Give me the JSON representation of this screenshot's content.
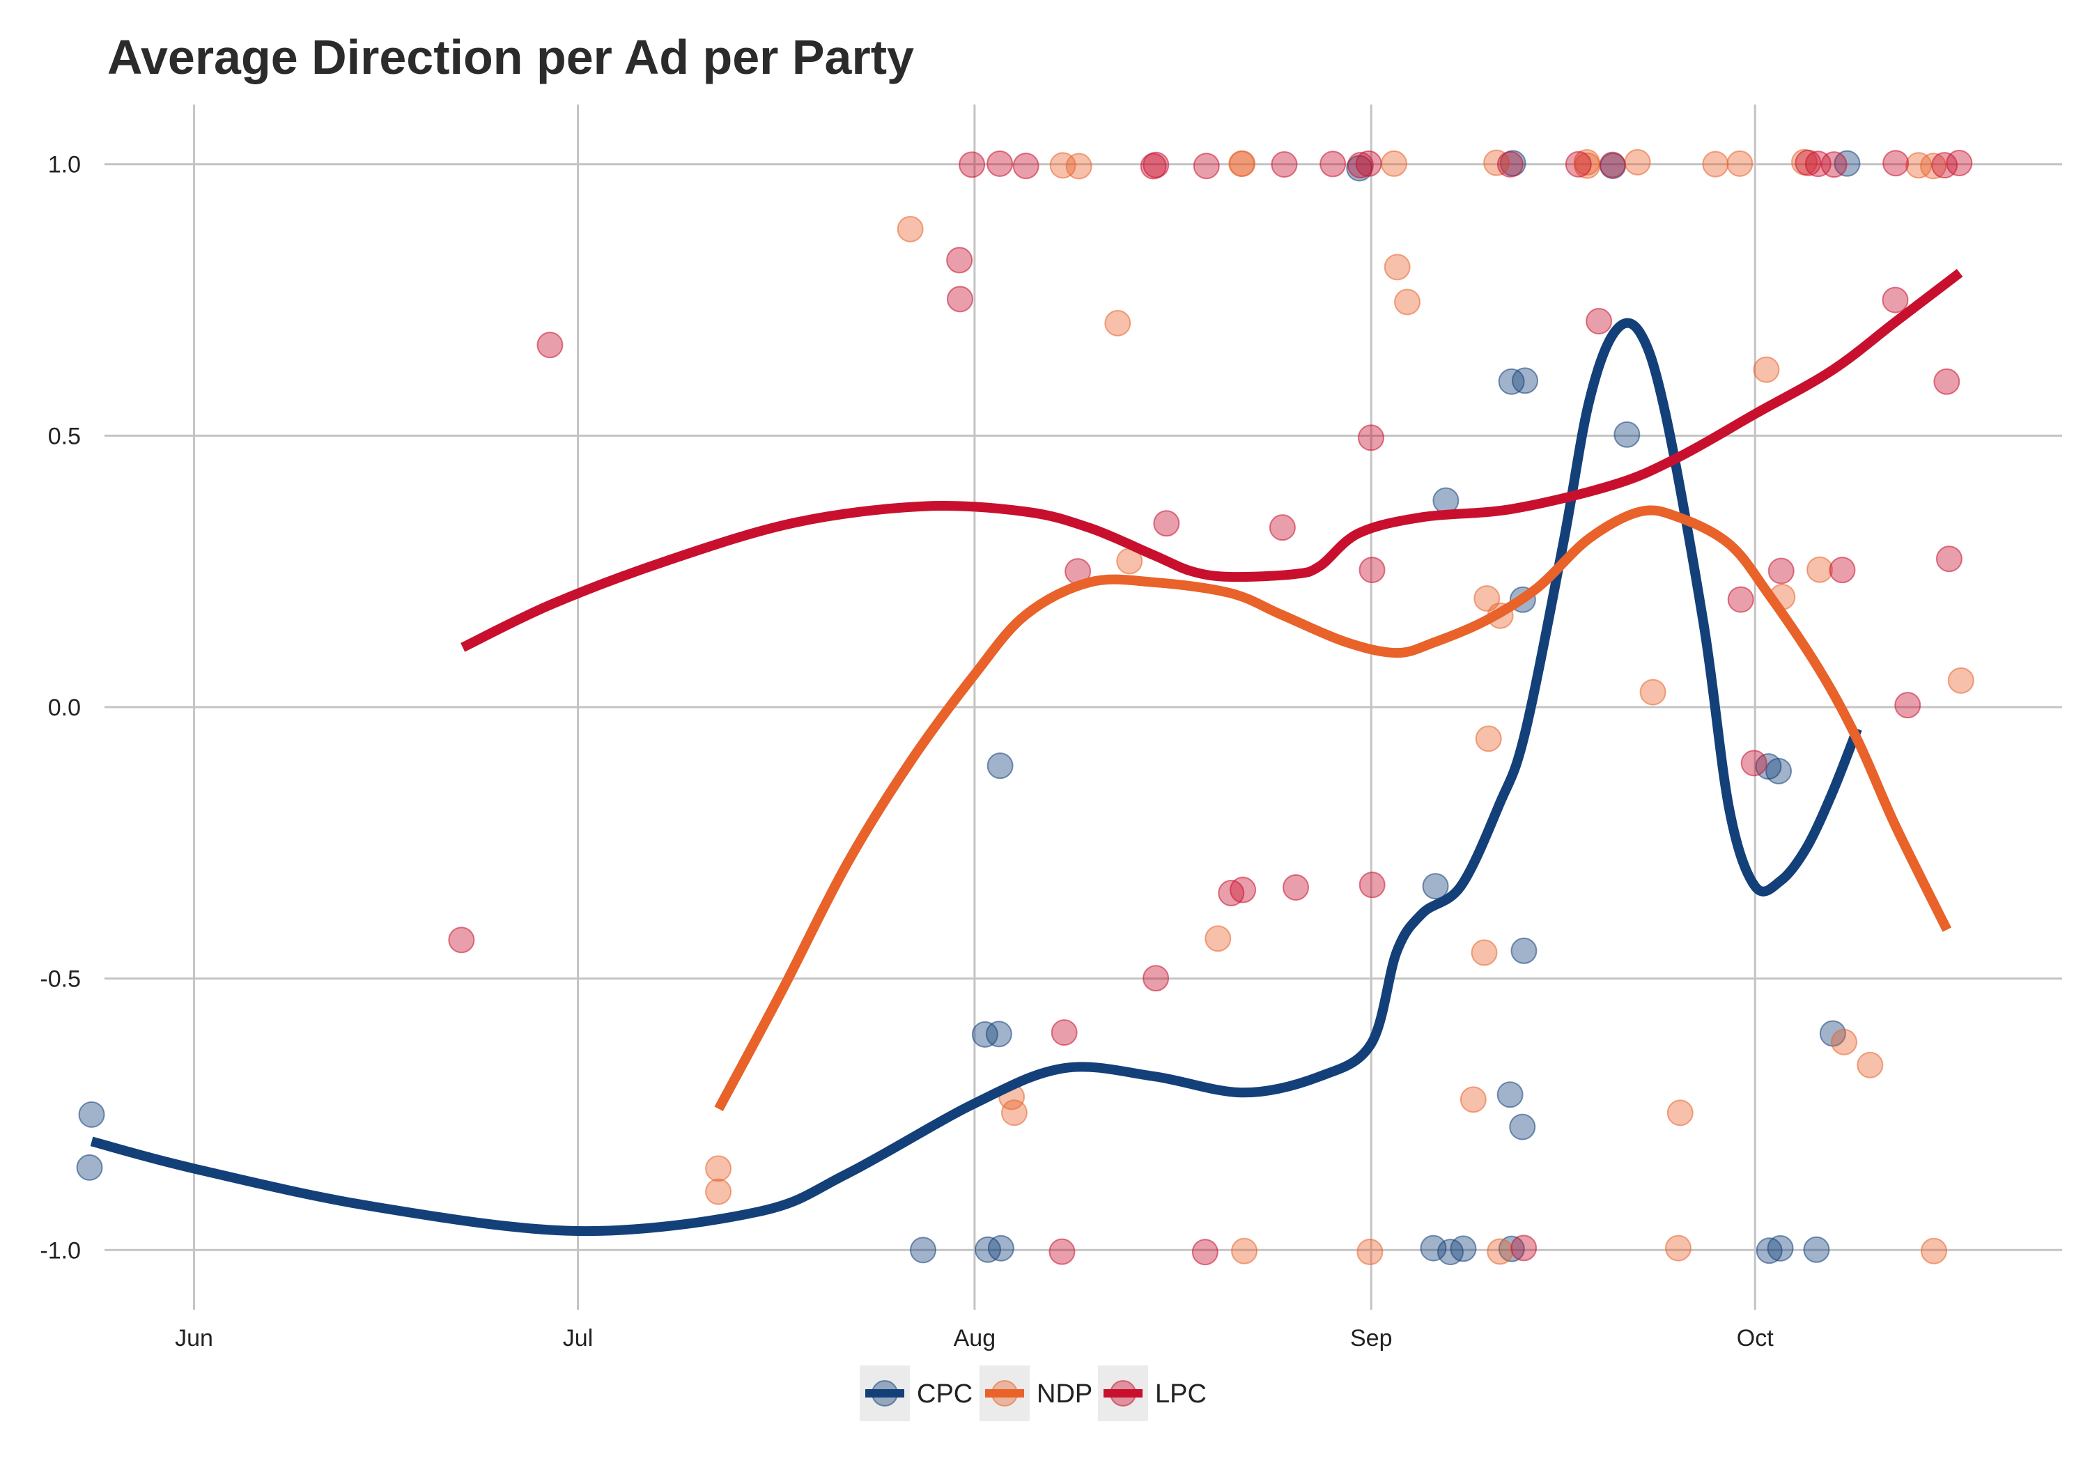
{
  "chart_data": {
    "type": "scatter",
    "title": "Average Direction per Ad per Party",
    "xlabel": "",
    "ylabel": "",
    "x_ticks": [
      {
        "label": "Jun",
        "date": "2019-06-01"
      },
      {
        "label": "Jul",
        "date": "2019-07-01"
      },
      {
        "label": "Aug",
        "date": "2019-08-01"
      },
      {
        "label": "Sep",
        "date": "2019-09-01"
      },
      {
        "label": "Oct",
        "date": "2019-10-01"
      }
    ],
    "y_ticks": [
      {
        "label": "1.0",
        "value": 1.0
      },
      {
        "label": "0.5",
        "value": 0.5
      },
      {
        "label": "0.0",
        "value": 0.0
      },
      {
        "label": "-0.5",
        "value": -0.5
      },
      {
        "label": "-1.0",
        "value": -1.0
      }
    ],
    "xlim": [
      "2019-05-25",
      "2019-10-25"
    ],
    "ylim": [
      -1.11,
      1.11
    ],
    "grid": true,
    "legend_position": "bottom",
    "series": [
      {
        "name": "CPC",
        "color": "#14407a",
        "points": [
          [
            "2019-05-24",
            -0.75
          ],
          [
            "2019-05-24",
            -0.85
          ],
          [
            "2019-07-28",
            -1.0
          ],
          [
            "2019-08-02",
            -0.6
          ],
          [
            "2019-08-02",
            -1.0
          ],
          [
            "2019-08-03",
            -0.6
          ],
          [
            "2019-08-03",
            -1.0
          ],
          [
            "2019-08-03",
            -0.11
          ],
          [
            "2019-08-31",
            0.99
          ],
          [
            "2019-09-06",
            -0.33
          ],
          [
            "2019-09-06",
            -1.0
          ],
          [
            "2019-09-07",
            -1.0
          ],
          [
            "2019-09-07",
            0.38
          ],
          [
            "2019-09-08",
            -1.0
          ],
          [
            "2019-09-12",
            0.6
          ],
          [
            "2019-09-12",
            1.0
          ],
          [
            "2019-09-12",
            -0.71
          ],
          [
            "2019-09-12",
            -1.0
          ],
          [
            "2019-09-13",
            0.6
          ],
          [
            "2019-09-13",
            0.2
          ],
          [
            "2019-09-13",
            -0.45
          ],
          [
            "2019-09-13",
            -0.77
          ],
          [
            "2019-09-20",
            1.0
          ],
          [
            "2019-09-21",
            0.5
          ],
          [
            "2019-10-02",
            -0.11
          ],
          [
            "2019-10-02",
            -1.0
          ],
          [
            "2019-10-03",
            -0.12
          ],
          [
            "2019-10-03",
            -1.0
          ],
          [
            "2019-10-06",
            -1.0
          ],
          [
            "2019-10-07",
            -0.6
          ],
          [
            "2019-10-08",
            1.0
          ]
        ],
        "trend": [
          [
            "2019-05-24",
            -0.8
          ],
          [
            "2019-06-01",
            -0.85
          ],
          [
            "2019-06-15",
            -0.92
          ],
          [
            "2019-07-01",
            -0.965
          ],
          [
            "2019-07-15",
            -0.93
          ],
          [
            "2019-07-22",
            -0.86
          ],
          [
            "2019-08-01",
            -0.73
          ],
          [
            "2019-08-08",
            -0.665
          ],
          [
            "2019-08-15",
            -0.68
          ],
          [
            "2019-08-22",
            -0.71
          ],
          [
            "2019-08-28",
            -0.68
          ],
          [
            "2019-09-01",
            -0.62
          ],
          [
            "2019-09-03",
            -0.45
          ],
          [
            "2019-09-05",
            -0.38
          ],
          [
            "2019-09-08",
            -0.33
          ],
          [
            "2019-09-11",
            -0.18
          ],
          [
            "2019-09-13",
            -0.05
          ],
          [
            "2019-09-16",
            0.3
          ],
          [
            "2019-09-18",
            0.56
          ],
          [
            "2019-09-20",
            0.69
          ],
          [
            "2019-09-22",
            0.69
          ],
          [
            "2019-09-24",
            0.54
          ],
          [
            "2019-09-27",
            0.15
          ],
          [
            "2019-09-29",
            -0.19
          ],
          [
            "2019-10-01",
            -0.33
          ],
          [
            "2019-10-03",
            -0.32
          ],
          [
            "2019-10-05",
            -0.26
          ],
          [
            "2019-10-07",
            -0.16
          ],
          [
            "2019-10-09",
            -0.04
          ]
        ]
      },
      {
        "name": "NDP",
        "color": "#e8622a",
        "points": [
          [
            "2019-07-12",
            -0.85
          ],
          [
            "2019-07-12",
            -0.89
          ],
          [
            "2019-07-27",
            0.88
          ],
          [
            "2019-08-04",
            -0.72
          ],
          [
            "2019-08-04",
            -0.75
          ],
          [
            "2019-08-08",
            1.0
          ],
          [
            "2019-08-09",
            1.0
          ],
          [
            "2019-08-12",
            0.71
          ],
          [
            "2019-08-13",
            0.27
          ],
          [
            "2019-08-20",
            -0.43
          ],
          [
            "2019-08-22",
            1.0
          ],
          [
            "2019-08-22",
            1.0
          ],
          [
            "2019-08-22",
            -1.0
          ],
          [
            "2019-09-01",
            -1.0
          ],
          [
            "2019-09-03",
            1.0
          ],
          [
            "2019-09-03",
            0.81
          ],
          [
            "2019-09-04",
            0.75
          ],
          [
            "2019-09-09",
            -0.72
          ],
          [
            "2019-09-10",
            0.2
          ],
          [
            "2019-09-10",
            -0.45
          ],
          [
            "2019-09-10",
            -0.06
          ],
          [
            "2019-09-11",
            1.0
          ],
          [
            "2019-09-11",
            0.17
          ],
          [
            "2019-09-11",
            -1.0
          ],
          [
            "2019-09-18",
            1.0
          ],
          [
            "2019-09-18",
            1.0
          ],
          [
            "2019-09-22",
            1.0
          ],
          [
            "2019-09-23",
            0.03
          ],
          [
            "2019-09-25",
            -0.75
          ],
          [
            "2019-09-25",
            -1.0
          ],
          [
            "2019-09-28",
            1.0
          ],
          [
            "2019-09-30",
            1.0
          ],
          [
            "2019-10-02",
            0.62
          ],
          [
            "2019-10-03",
            0.2
          ],
          [
            "2019-10-05",
            1.0
          ],
          [
            "2019-10-06",
            0.25
          ],
          [
            "2019-10-08",
            -0.62
          ],
          [
            "2019-10-10",
            -0.66
          ],
          [
            "2019-10-14",
            1.0
          ],
          [
            "2019-10-15",
            -1.0
          ],
          [
            "2019-10-15",
            1.0
          ],
          [
            "2019-10-17",
            0.05
          ]
        ],
        "trend": [
          [
            "2019-07-12",
            -0.74
          ],
          [
            "2019-07-17",
            -0.52
          ],
          [
            "2019-07-22",
            -0.29
          ],
          [
            "2019-07-27",
            -0.1
          ],
          [
            "2019-08-01",
            0.06
          ],
          [
            "2019-08-05",
            0.17
          ],
          [
            "2019-08-10",
            0.23
          ],
          [
            "2019-08-15",
            0.23
          ],
          [
            "2019-08-21",
            0.21
          ],
          [
            "2019-08-25",
            0.17
          ],
          [
            "2019-08-30",
            0.12
          ],
          [
            "2019-09-03",
            0.1
          ],
          [
            "2019-09-06",
            0.12
          ],
          [
            "2019-09-10",
            0.16
          ],
          [
            "2019-09-14",
            0.22
          ],
          [
            "2019-09-18",
            0.31
          ],
          [
            "2019-09-22",
            0.36
          ],
          [
            "2019-09-25",
            0.35
          ],
          [
            "2019-09-29",
            0.3
          ],
          [
            "2019-10-02",
            0.21
          ],
          [
            "2019-10-06",
            0.07
          ],
          [
            "2019-10-09",
            -0.06
          ],
          [
            "2019-10-12",
            -0.22
          ],
          [
            "2019-10-16",
            -0.41
          ]
        ]
      },
      {
        "name": "LPC",
        "color": "#c8102e",
        "points": [
          [
            "2019-06-22",
            -0.43
          ],
          [
            "2019-06-29",
            0.67
          ],
          [
            "2019-07-31",
            0.82
          ],
          [
            "2019-07-31",
            0.75
          ],
          [
            "2019-08-01",
            1.0
          ],
          [
            "2019-08-03",
            1.0
          ],
          [
            "2019-08-05",
            1.0
          ],
          [
            "2019-08-08",
            -0.6
          ],
          [
            "2019-08-08",
            -1.0
          ],
          [
            "2019-08-09",
            0.25
          ],
          [
            "2019-08-15",
            1.0
          ],
          [
            "2019-08-15",
            1.0
          ],
          [
            "2019-08-15",
            -0.5
          ],
          [
            "2019-08-16",
            0.34
          ],
          [
            "2019-08-19",
            1.0
          ],
          [
            "2019-08-19",
            -1.0
          ],
          [
            "2019-08-21",
            -0.34
          ],
          [
            "2019-08-22",
            -0.34
          ],
          [
            "2019-08-25",
            1.0
          ],
          [
            "2019-08-25",
            0.33
          ],
          [
            "2019-08-26",
            -0.33
          ],
          [
            "2019-08-29",
            1.0
          ],
          [
            "2019-08-31",
            1.0
          ],
          [
            "2019-09-01",
            1.0
          ],
          [
            "2019-09-01",
            0.5
          ],
          [
            "2019-09-01",
            0.25
          ],
          [
            "2019-09-01",
            -0.33
          ],
          [
            "2019-09-12",
            1.0
          ],
          [
            "2019-09-13",
            -1.0
          ],
          [
            "2019-09-17",
            1.0
          ],
          [
            "2019-09-19",
            0.71
          ],
          [
            "2019-09-20",
            1.0
          ],
          [
            "2019-09-30",
            0.2
          ],
          [
            "2019-10-01",
            -0.1
          ],
          [
            "2019-10-03",
            0.25
          ],
          [
            "2019-10-05",
            1.0
          ],
          [
            "2019-10-06",
            1.0
          ],
          [
            "2019-10-07",
            1.0
          ],
          [
            "2019-10-08",
            0.25
          ],
          [
            "2019-10-12",
            1.0
          ],
          [
            "2019-10-12",
            0.75
          ],
          [
            "2019-10-13",
            0.0
          ],
          [
            "2019-10-16",
            1.0
          ],
          [
            "2019-10-16",
            0.6
          ],
          [
            "2019-10-16",
            0.27
          ],
          [
            "2019-10-17",
            1.0
          ]
        ],
        "trend": [
          [
            "2019-06-22",
            0.11
          ],
          [
            "2019-06-29",
            0.19
          ],
          [
            "2019-07-08",
            0.27
          ],
          [
            "2019-07-18",
            0.34
          ],
          [
            "2019-07-28",
            0.37
          ],
          [
            "2019-08-05",
            0.36
          ],
          [
            "2019-08-10",
            0.33
          ],
          [
            "2019-08-15",
            0.28
          ],
          [
            "2019-08-18",
            0.25
          ],
          [
            "2019-08-21",
            0.24
          ],
          [
            "2019-08-26",
            0.245
          ],
          [
            "2019-08-28",
            0.26
          ],
          [
            "2019-08-31",
            0.32
          ],
          [
            "2019-09-05",
            0.35
          ],
          [
            "2019-09-12",
            0.365
          ],
          [
            "2019-09-20",
            0.41
          ],
          [
            "2019-09-25",
            0.46
          ],
          [
            "2019-10-01",
            0.54
          ],
          [
            "2019-10-07",
            0.62
          ],
          [
            "2019-10-12",
            0.71
          ],
          [
            "2019-10-17",
            0.8
          ]
        ]
      }
    ]
  }
}
